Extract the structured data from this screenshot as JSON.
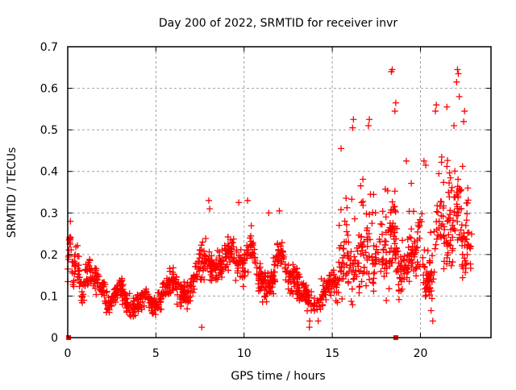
{
  "chart_data": {
    "type": "scatter",
    "title": "Day 200 of 2022, SRMTID for receiver invr",
    "xlabel": "GPS time / hours",
    "ylabel": "SRMTID / TECUs",
    "xlim": [
      0,
      24
    ],
    "ylim": [
      0,
      0.7
    ],
    "xticks": [
      0,
      5,
      10,
      15,
      20
    ],
    "yticks": [
      0,
      0.1,
      0.2,
      0.3,
      0.4,
      0.5,
      0.6,
      0.7
    ],
    "xtick_labels": [
      "0",
      "5",
      "10",
      "15",
      "20"
    ],
    "ytick_labels": [
      "0",
      "0.1",
      "0.2",
      "0.3",
      "0.4",
      "0.5",
      "0.6",
      "0.7"
    ],
    "grid": true,
    "marker": "plus",
    "color": "#ff0000",
    "series": [
      {
        "name": "SRMTID",
        "trend": {
          "x": [
            0.0,
            0.1,
            0.3,
            0.5,
            0.8,
            1.0,
            1.3,
            1.6,
            2.0,
            2.3,
            2.6,
            3.0,
            3.3,
            3.6,
            4.0,
            4.4,
            4.8,
            5.0,
            5.3,
            5.6,
            6.0,
            6.4,
            6.8,
            7.2,
            7.6,
            8.0,
            8.4,
            8.8,
            9.2,
            9.6,
            10.0,
            10.4,
            10.8,
            11.2,
            11.6,
            12.0,
            12.4,
            12.8,
            13.2,
            13.6,
            14.0,
            14.4,
            14.8,
            15.2,
            15.5,
            15.8,
            16.1,
            16.4,
            16.7,
            17.0,
            17.3,
            17.6,
            17.9,
            18.2,
            18.5,
            18.8,
            19.1,
            19.4,
            19.7,
            20.0,
            20.3,
            20.6,
            20.9,
            21.2,
            21.5,
            21.8,
            22.1,
            22.4,
            22.7,
            22.9
          ],
          "center": [
            0.15,
            0.25,
            0.15,
            0.2,
            0.1,
            0.15,
            0.16,
            0.14,
            0.12,
            0.07,
            0.1,
            0.13,
            0.08,
            0.07,
            0.08,
            0.1,
            0.08,
            0.07,
            0.1,
            0.13,
            0.14,
            0.11,
            0.1,
            0.14,
            0.19,
            0.18,
            0.16,
            0.18,
            0.21,
            0.19,
            0.17,
            0.22,
            0.15,
            0.12,
            0.14,
            0.22,
            0.15,
            0.14,
            0.12,
            0.1,
            0.07,
            0.1,
            0.13,
            0.12,
            0.16,
            0.19,
            0.15,
            0.14,
            0.18,
            0.2,
            0.16,
            0.2,
            0.23,
            0.18,
            0.27,
            0.12,
            0.15,
            0.2,
            0.18,
            0.25,
            0.12,
            0.14,
            0.23,
            0.3,
            0.2,
            0.25,
            0.3,
            0.2,
            0.22,
            0.2
          ],
          "spread": [
            0.05,
            0.03,
            0.04,
            0.04,
            0.04,
            0.04,
            0.04,
            0.04,
            0.04,
            0.03,
            0.03,
            0.04,
            0.03,
            0.03,
            0.03,
            0.03,
            0.03,
            0.03,
            0.03,
            0.04,
            0.04,
            0.04,
            0.04,
            0.05,
            0.06,
            0.05,
            0.05,
            0.05,
            0.06,
            0.05,
            0.06,
            0.06,
            0.05,
            0.05,
            0.05,
            0.06,
            0.05,
            0.05,
            0.04,
            0.04,
            0.03,
            0.04,
            0.04,
            0.04,
            0.08,
            0.1,
            0.1,
            0.1,
            0.1,
            0.1,
            0.1,
            0.1,
            0.12,
            0.1,
            0.12,
            0.06,
            0.05,
            0.07,
            0.06,
            0.1,
            0.05,
            0.06,
            0.1,
            0.12,
            0.1,
            0.12,
            0.13,
            0.1,
            0.06,
            0.05
          ]
        },
        "outliers": [
          {
            "x": 0.15,
            "y": 0.28
          },
          {
            "x": 7.6,
            "y": 0.025
          },
          {
            "x": 18.4,
            "y": 0.645
          },
          {
            "x": 18.35,
            "y": 0.64
          },
          {
            "x": 18.6,
            "y": 0.565
          },
          {
            "x": 18.55,
            "y": 0.545
          },
          {
            "x": 16.2,
            "y": 0.525
          },
          {
            "x": 16.15,
            "y": 0.505
          },
          {
            "x": 17.1,
            "y": 0.525
          },
          {
            "x": 17.05,
            "y": 0.51
          },
          {
            "x": 15.5,
            "y": 0.455
          },
          {
            "x": 19.2,
            "y": 0.425
          },
          {
            "x": 20.2,
            "y": 0.425
          },
          {
            "x": 20.3,
            "y": 0.415
          },
          {
            "x": 20.9,
            "y": 0.56
          },
          {
            "x": 20.85,
            "y": 0.545
          },
          {
            "x": 21.5,
            "y": 0.555
          },
          {
            "x": 22.1,
            "y": 0.645
          },
          {
            "x": 22.15,
            "y": 0.635
          },
          {
            "x": 22.05,
            "y": 0.615
          },
          {
            "x": 22.2,
            "y": 0.58
          },
          {
            "x": 21.9,
            "y": 0.51
          },
          {
            "x": 22.5,
            "y": 0.545
          },
          {
            "x": 22.45,
            "y": 0.52
          },
          {
            "x": 8.0,
            "y": 0.33
          },
          {
            "x": 8.05,
            "y": 0.31
          },
          {
            "x": 9.7,
            "y": 0.325
          },
          {
            "x": 10.2,
            "y": 0.33
          },
          {
            "x": 11.4,
            "y": 0.3
          },
          {
            "x": 12.0,
            "y": 0.305
          },
          {
            "x": 13.7,
            "y": 0.025
          },
          {
            "x": 13.72,
            "y": 0.04
          },
          {
            "x": 14.2,
            "y": 0.04
          },
          {
            "x": 20.7,
            "y": 0.04
          },
          {
            "x": 20.6,
            "y": 0.065
          }
        ],
        "zero_points": [
          0.05,
          18.6
        ]
      }
    ]
  }
}
